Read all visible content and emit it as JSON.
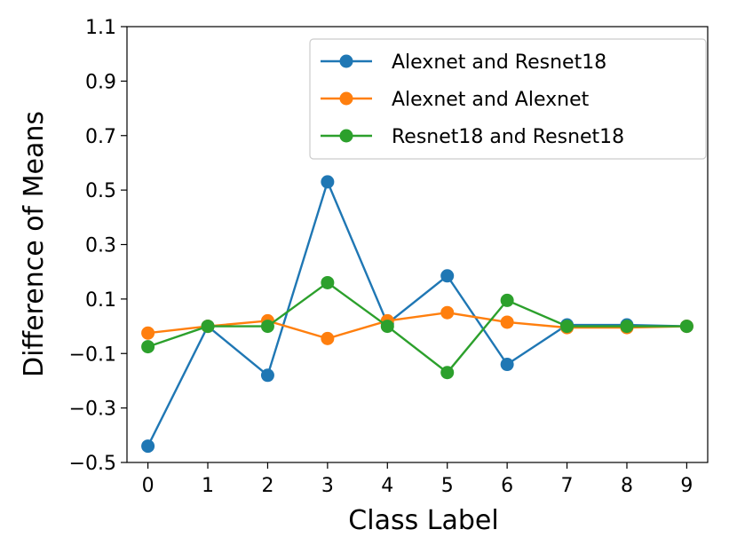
{
  "chart_data": {
    "type": "line",
    "xlabel": "Class Label",
    "ylabel": "Difference of Means",
    "x": [
      0,
      1,
      2,
      3,
      4,
      5,
      6,
      7,
      8,
      9
    ],
    "xticks": [
      "0",
      "1",
      "2",
      "3",
      "4",
      "5",
      "6",
      "7",
      "8",
      "9"
    ],
    "yticks": [
      "−0.5",
      "−0.3",
      "−0.1",
      "0.1",
      "0.3",
      "0.5",
      "0.7",
      "0.9",
      "1.1"
    ],
    "ytick_values": [
      -0.5,
      -0.3,
      -0.1,
      0.1,
      0.3,
      0.5,
      0.7,
      0.9,
      1.1
    ],
    "xlim": [
      -0.35,
      9.35
    ],
    "ylim": [
      -0.5,
      1.1
    ],
    "grid": false,
    "legend_position": "top-right",
    "series": [
      {
        "name": "Alexnet and Resnet18",
        "color": "#1f77b4",
        "values": [
          -0.44,
          0.0,
          -0.18,
          0.53,
          0.01,
          0.185,
          -0.14,
          0.005,
          0.005,
          0.0
        ]
      },
      {
        "name": "Alexnet and Alexnet",
        "color": "#ff7f0e",
        "values": [
          -0.025,
          0.0,
          0.02,
          -0.045,
          0.02,
          0.05,
          0.015,
          -0.005,
          -0.005,
          0.0
        ]
      },
      {
        "name": "Resnet18 and Resnet18",
        "color": "#2ca02c",
        "values": [
          -0.075,
          0.0,
          0.0,
          0.16,
          0.0,
          -0.17,
          0.095,
          0.0,
          0.0,
          0.0
        ]
      }
    ]
  }
}
